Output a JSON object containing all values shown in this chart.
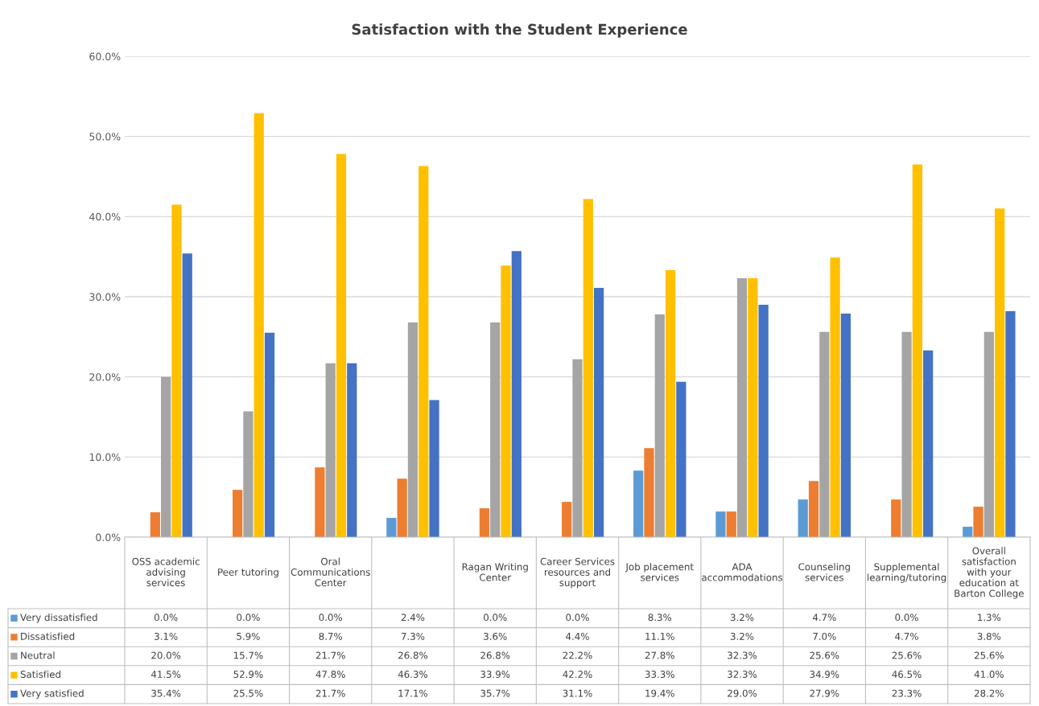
{
  "chart_data": {
    "type": "bar",
    "title": "Satisfaction with the Student Experience",
    "categories": [
      "OSS academic\nadvising\nservices",
      "Peer tutoring",
      "Oral\nCommunications\nCenter",
      null,
      "Ragan Writing\nCenter",
      "Career Services\nresources and\nsupport",
      "Job placement\nservices",
      "ADA\naccommodations",
      "Counseling\nservices",
      "Supplemental\nlearning/tutoring",
      "Overall\nsatisfaction\nwith your\neducation at\nBarton College"
    ],
    "series": [
      {
        "name": "Very dissatisfied",
        "color": "#5b9bd5",
        "values": [
          0.0,
          0.0,
          0.0,
          2.4,
          0.0,
          0.0,
          8.3,
          3.2,
          4.7,
          0.0,
          1.3
        ],
        "value_labels": [
          "0.0%",
          "0.0%",
          "0.0%",
          "2.4%",
          "0.0%",
          "0.0%",
          "8.3%",
          "3.2%",
          "4.7%",
          "0.0%",
          "1.3%"
        ]
      },
      {
        "name": "Dissatisfied",
        "color": "#ed7d31",
        "values": [
          3.1,
          5.9,
          8.7,
          7.3,
          3.6,
          4.4,
          11.1,
          3.2,
          7.0,
          4.7,
          3.8
        ],
        "value_labels": [
          "3.1%",
          "5.9%",
          "8.7%",
          "7.3%",
          "3.6%",
          "4.4%",
          "11.1%",
          "3.2%",
          "7.0%",
          "4.7%",
          "3.8%"
        ]
      },
      {
        "name": "Neutral",
        "color": "#a5a5a5",
        "values": [
          20.0,
          15.7,
          21.7,
          26.8,
          26.8,
          22.2,
          27.8,
          32.3,
          25.6,
          25.6,
          25.6
        ],
        "value_labels": [
          "20.0%",
          "15.7%",
          "21.7%",
          "26.8%",
          "26.8%",
          "22.2%",
          "27.8%",
          "32.3%",
          "25.6%",
          "25.6%",
          "25.6%"
        ]
      },
      {
        "name": "Satisfied",
        "color": "#ffc000",
        "values": [
          41.5,
          52.9,
          47.8,
          46.3,
          33.9,
          42.2,
          33.3,
          32.3,
          34.9,
          46.5,
          41.0
        ],
        "value_labels": [
          "41.5%",
          "52.9%",
          "47.8%",
          "46.3%",
          "33.9%",
          "42.2%",
          "33.3%",
          "32.3%",
          "34.9%",
          "46.5%",
          "41.0%"
        ]
      },
      {
        "name": "Very satisfied",
        "color": "#4472c4",
        "values": [
          35.4,
          25.5,
          21.7,
          17.1,
          35.7,
          31.1,
          19.4,
          29.0,
          27.9,
          23.3,
          28.2
        ],
        "value_labels": [
          "35.4%",
          "25.5%",
          "21.7%",
          "17.1%",
          "35.7%",
          "31.1%",
          "19.4%",
          "29.0%",
          "27.9%",
          "23.3%",
          "28.2%"
        ]
      }
    ],
    "ylim": [
      0,
      60
    ],
    "yticks": [
      {
        "value": 0,
        "label": "0.0%"
      },
      {
        "value": 10,
        "label": "10.0%"
      },
      {
        "value": 20,
        "label": "20.0%"
      },
      {
        "value": 30,
        "label": "30.0%"
      },
      {
        "value": 40,
        "label": "40.0%"
      },
      {
        "value": 50,
        "label": "50.0%"
      },
      {
        "value": 60,
        "label": "60.0%"
      }
    ],
    "grid": "y",
    "legend": "bottom"
  }
}
